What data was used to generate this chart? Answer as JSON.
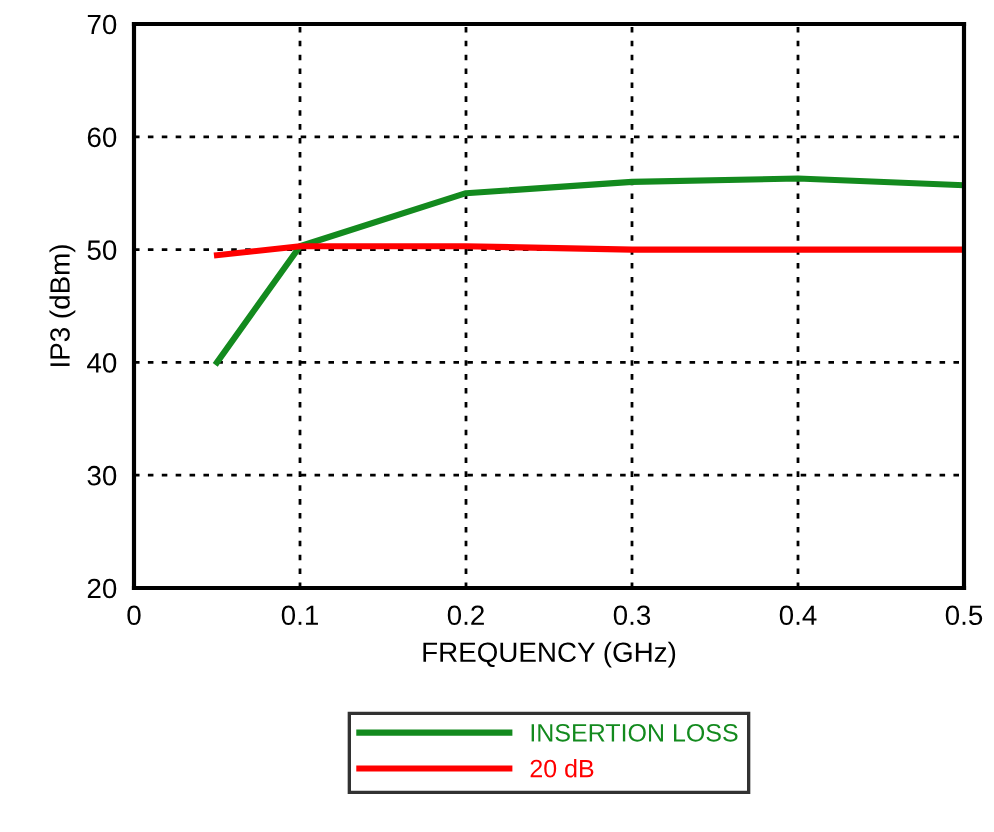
{
  "chart_data": {
    "type": "line",
    "xlabel": "FREQUENCY (GHz)",
    "ylabel": "IP3 (dBm)",
    "xlim": [
      0,
      0.5
    ],
    "xticks": [
      0,
      0.1,
      0.2,
      0.3,
      0.4,
      0.5
    ],
    "ylim": [
      20,
      70
    ],
    "yticks": [
      20,
      30,
      40,
      50,
      60,
      70
    ],
    "grid": true,
    "legend": "bottom",
    "line_style": "solid",
    "marker": "none",
    "series": [
      {
        "name": "INSERTION LOSS",
        "color": "#138a1e",
        "x": [
          0.05,
          0.1,
          0.2,
          0.3,
          0.4,
          0.5
        ],
        "values": [
          40,
          50.3,
          55,
          56,
          56.3,
          55.7
        ]
      },
      {
        "name": "20 dB",
        "color": "#ff0000",
        "x": [
          0.05,
          0.1,
          0.2,
          0.3,
          0.4,
          0.5
        ],
        "values": [
          49.5,
          50.3,
          50.3,
          50,
          50,
          50
        ]
      }
    ]
  }
}
